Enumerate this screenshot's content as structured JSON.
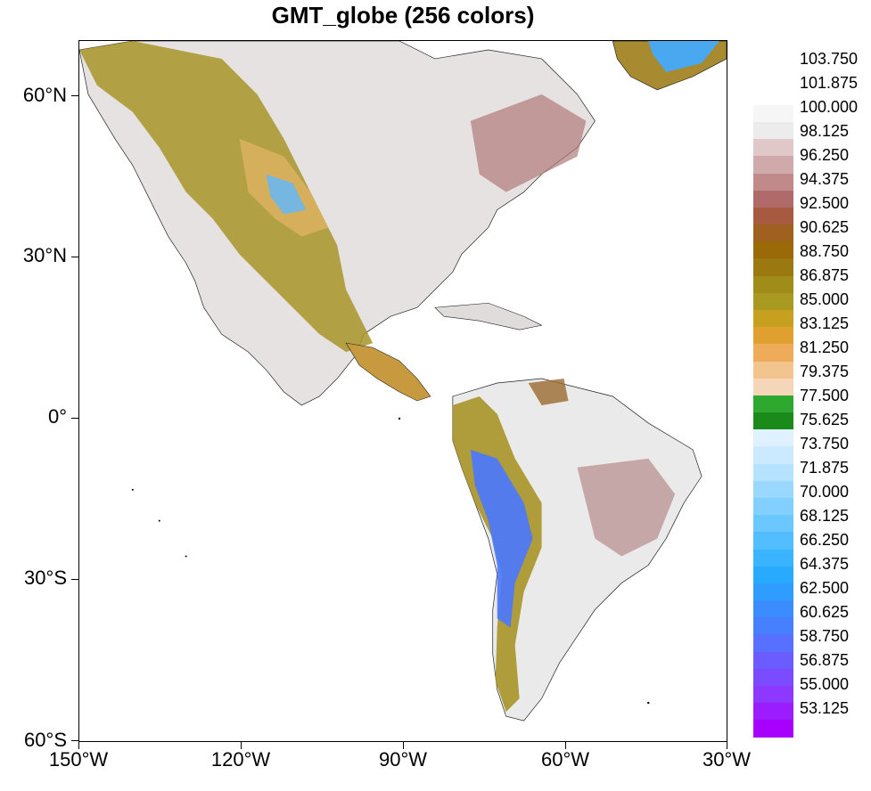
{
  "title": "GMT_globe (256 colors)",
  "map": {
    "lat_labels": [
      "60°N",
      "30°N",
      "0°",
      "30°S",
      "60°S"
    ],
    "lon_labels": [
      "150°W",
      "120°W",
      "90°W",
      "60°W",
      "30°W"
    ],
    "region": {
      "lon_range": [
        -150,
        -30
      ],
      "lat_range": [
        -60,
        70
      ]
    }
  },
  "colorbar": {
    "labels": [
      "103.750",
      "101.875",
      "100.000",
      "98.125",
      "96.250",
      "94.375",
      "92.500",
      "90.625",
      "88.750",
      "86.875",
      "85.000",
      "83.125",
      "81.250",
      "79.375",
      "77.500",
      "75.625",
      "73.750",
      "71.875",
      "70.000",
      "68.125",
      "66.250",
      "64.375",
      "62.500",
      "60.625",
      "58.750",
      "56.875",
      "55.000",
      "53.125"
    ],
    "colors": [
      "#a800ff",
      "#9a1cff",
      "#8c38ff",
      "#7b4cff",
      "#6a5cff",
      "#5870ff",
      "#4680ff",
      "#3a8cff",
      "#2f9cff",
      "#27aaff",
      "#3ab4ff",
      "#52beff",
      "#6ac8ff",
      "#82d0ff",
      "#9ad8ff",
      "#b4e2ff",
      "#cceaff",
      "#e0f2ff",
      "#1a8a1a",
      "#2ea82e",
      "#f5d6b8",
      "#f2c58e",
      "#eeac5a",
      "#e0a030",
      "#c8a020",
      "#a89a20",
      "#a08c18",
      "#9a7a10",
      "#9a6a08",
      "#a06020",
      "#a85a40",
      "#b06a6a",
      "#c08a8a",
      "#d0aaaa",
      "#e0c8c8",
      "#ececec",
      "#f6f6f6",
      "#ffffff"
    ]
  }
}
